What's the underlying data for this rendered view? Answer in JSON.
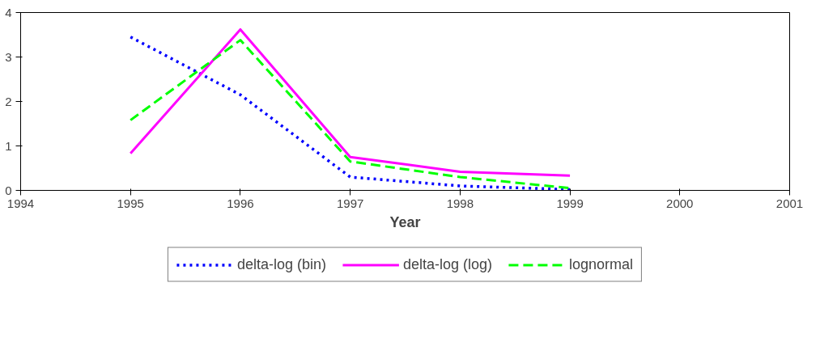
{
  "chart_data": {
    "type": "line",
    "xlabel": "Year",
    "x": [
      1995,
      1996,
      1997,
      1998,
      1999
    ],
    "xlim": [
      1994,
      2001
    ],
    "xticks": [
      1994,
      1995,
      1996,
      1997,
      1998,
      1999,
      2000,
      2001
    ],
    "ylim": [
      0,
      4
    ],
    "yticks": [
      0,
      1,
      2,
      3,
      4
    ],
    "grid": false,
    "legend": "bottom",
    "marker": "none",
    "series": [
      {
        "name": "delta-log (bin)",
        "color": "#0000ff",
        "line_style": "dotted",
        "values": [
          3.45,
          2.15,
          0.3,
          0.1,
          0.02
        ]
      },
      {
        "name": "delta-log (log)",
        "color": "#ff00ff",
        "line_style": "solid",
        "values": [
          0.83,
          3.62,
          0.75,
          0.42,
          0.33
        ]
      },
      {
        "name": "lognormal",
        "color": "#00ff00",
        "line_style": "dashed",
        "values": [
          1.58,
          3.38,
          0.65,
          0.3,
          0.05
        ]
      }
    ]
  }
}
